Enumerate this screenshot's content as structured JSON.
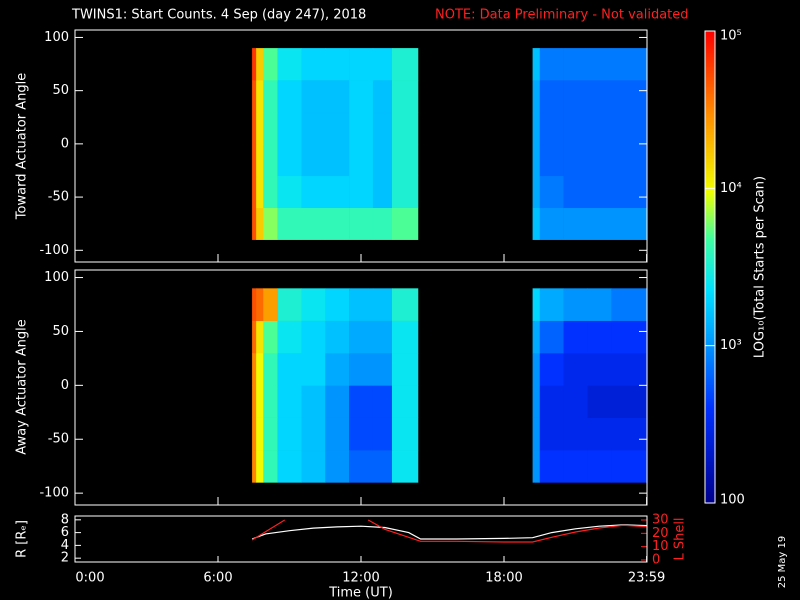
{
  "chart_data": [
    {
      "type": "heatmap",
      "title": "TWINS1: Start Counts.  4 Sep (day 247), 2018",
      "subtitle": "NOTE: Data Preliminary - Not validated",
      "ylabel": "Toward Actuator Angle",
      "xlim": [
        0,
        24
      ],
      "ylim": [
        -111,
        107
      ],
      "yticks": [
        100,
        50,
        0,
        -50,
        -100
      ],
      "x_edges": [
        7.43,
        7.6,
        7.9,
        8.5,
        9.5,
        10.5,
        11.5,
        12.5,
        13.3,
        14.39,
        19.2,
        19.5,
        20.5,
        21.5,
        22.5,
        24
      ],
      "y_edges": [
        -90,
        -60,
        -30,
        0,
        30,
        60,
        90
      ],
      "z": [
        [
          50000,
          16000,
          6300,
          4000,
          4000,
          4000,
          4000,
          4000,
          5000,
          null,
          1600,
          1000,
          1000,
          1000,
          1000
        ],
        [
          50000,
          12500,
          4000,
          2500,
          2000,
          2000,
          2000,
          1600,
          3200,
          null,
          1250,
          800,
          630,
          630,
          630
        ],
        [
          50000,
          12500,
          4000,
          2000,
          1600,
          1600,
          2000,
          1600,
          3200,
          null,
          1250,
          630,
          630,
          630,
          630
        ],
        [
          50000,
          12500,
          4000,
          2000,
          1600,
          1600,
          2000,
          1600,
          3200,
          null,
          1250,
          630,
          630,
          630,
          630
        ],
        [
          50000,
          12500,
          4000,
          2000,
          1600,
          1600,
          2000,
          1600,
          3200,
          null,
          1250,
          630,
          630,
          630,
          630
        ],
        [
          63000,
          16000,
          5000,
          2500,
          2000,
          2000,
          2000,
          2000,
          3200,
          null,
          1600,
          800,
          800,
          800,
          800
        ]
      ],
      "colorbar": {
        "label": "LOG₁₀(Total Starts per Scan)",
        "log": true,
        "lim": [
          100,
          100000
        ],
        "ticks": [
          {
            "value": 100000,
            "label": "10⁵"
          },
          {
            "value": 10000,
            "label": "10⁴"
          },
          {
            "value": 1000,
            "label": "10³"
          },
          100
        ]
      }
    },
    {
      "type": "heatmap",
      "ylabel": "Away Actuator Angle",
      "xlim": [
        0,
        24
      ],
      "ylim": [
        -111,
        107
      ],
      "yticks": [
        100,
        50,
        0,
        -50,
        -100
      ],
      "x_edges": [
        7.43,
        7.6,
        7.9,
        8.5,
        9.5,
        10.5,
        11.5,
        12.5,
        13.3,
        14.39,
        19.2,
        19.5,
        20.5,
        21.5,
        22.5,
        24
      ],
      "y_edges": [
        -90,
        -60,
        -30,
        0,
        30,
        60,
        90
      ],
      "z": [
        [
          32000,
          10000,
          4000,
          2000,
          1600,
          1000,
          630,
          630,
          2500,
          null,
          1000,
          400,
          400,
          400,
          400
        ],
        [
          32000,
          10000,
          4000,
          2000,
          1600,
          1000,
          500,
          500,
          2500,
          null,
          1000,
          320,
          320,
          320,
          320
        ],
        [
          32000,
          10000,
          4000,
          2000,
          1600,
          1000,
          500,
          500,
          2500,
          null,
          1000,
          320,
          320,
          250,
          250
        ],
        [
          32000,
          10000,
          4000,
          2000,
          2000,
          1250,
          1000,
          1000,
          2500,
          null,
          1000,
          400,
          320,
          320,
          320
        ],
        [
          40000,
          12500,
          5000,
          2500,
          2000,
          1600,
          1250,
          1250,
          2500,
          null,
          1250,
          630,
          400,
          400,
          400
        ],
        [
          50000,
          40000,
          25000,
          3200,
          2500,
          2000,
          1600,
          1600,
          3200,
          null,
          2000,
          1250,
          1000,
          1000,
          800
        ]
      ]
    },
    {
      "type": "line",
      "xlabel": "Time (UT)",
      "ylabel": "R [Rₑ]",
      "y2label": "L Shell",
      "date_stamp": "25 May 19",
      "xlim": [
        0,
        24
      ],
      "xticks": [
        {
          "value": 0,
          "label": "0:00"
        },
        {
          "value": 6,
          "label": "6:00"
        },
        {
          "value": 12,
          "label": "12:00"
        },
        {
          "value": 18,
          "label": "18:00"
        },
        {
          "value": 23.983,
          "label": "23:59"
        }
      ],
      "ylim": [
        1.4,
        8.6
      ],
      "yticks": [
        8,
        6,
        4,
        2
      ],
      "y2lim": [
        -1.5,
        33
      ],
      "y2ticks": [
        30,
        20,
        10,
        0
      ],
      "series": [
        {
          "color": "#ffffff",
          "x": [
            7.43,
            8,
            9,
            10,
            11,
            12,
            13,
            14,
            14.5,
            16,
            18,
            19.2,
            20,
            21,
            22,
            23,
            24
          ],
          "values": [
            5,
            5.8,
            6.3,
            6.7,
            6.9,
            7,
            6.8,
            6,
            5,
            5,
            5.1,
            5.2,
            6,
            6.6,
            7,
            7.2,
            7.1
          ]
        },
        {
          "color": "#ff2020",
          "axis": "y2",
          "x": [
            7.43,
            8.8,
            10,
            12.3,
            13,
            14.5,
            16,
            18,
            19.2,
            20,
            21,
            22,
            23,
            24
          ],
          "values": [
            15,
            30,
            null,
            30,
            23,
            14,
            14,
            13.5,
            13.5,
            17,
            21,
            24,
            26,
            25
          ]
        }
      ]
    }
  ]
}
